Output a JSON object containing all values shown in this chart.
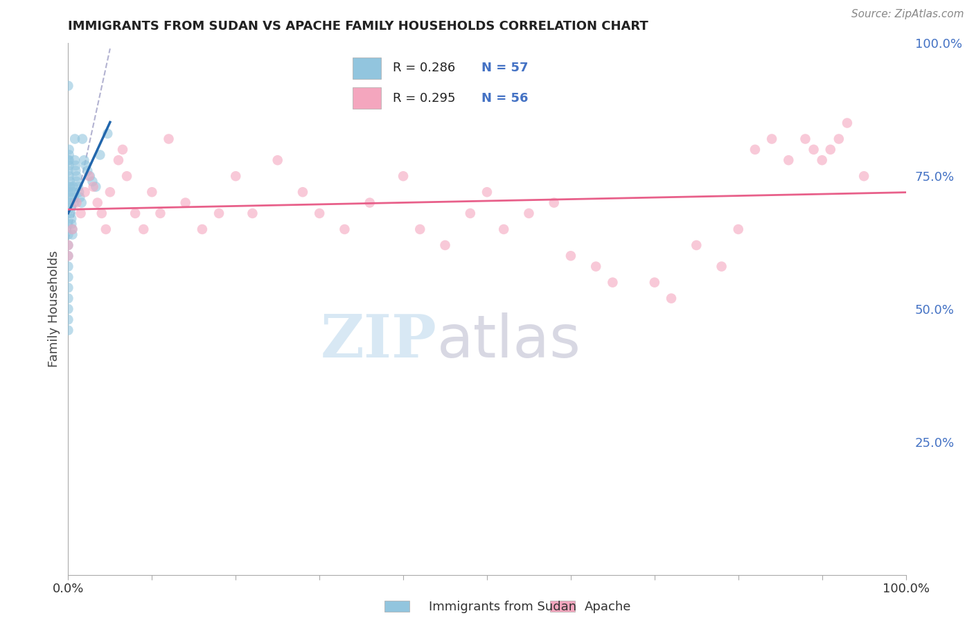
{
  "title": "IMMIGRANTS FROM SUDAN VS APACHE FAMILY HOUSEHOLDS CORRELATION CHART",
  "source_text": "Source: ZipAtlas.com",
  "ylabel": "Family Households",
  "legend_r1": "R = 0.286",
  "legend_n1": "N = 57",
  "legend_r2": "R = 0.295",
  "legend_n2": "N = 56",
  "color_blue": "#92c5de",
  "color_pink": "#f4a6be",
  "color_blue_line": "#2166ac",
  "color_pink_line": "#e8608a",
  "color_ref_line": "#aaaacc",
  "background_color": "#ffffff",
  "grid_color": "#dddddd",
  "title_color": "#222222",
  "source_color": "#888888",
  "axis_label_color": "#444444",
  "right_tick_color": "#4472c4",
  "bottom_label1": "Immigrants from Sudan",
  "bottom_label2": "Apache",
  "blue_x": [
    0.0,
    0.0,
    0.0,
    0.0,
    0.0,
    0.0,
    0.0,
    0.0,
    0.0,
    0.0,
    0.0,
    0.0,
    0.0,
    0.0,
    0.0,
    0.0,
    0.0,
    0.0,
    0.001,
    0.001,
    0.001,
    0.001,
    0.001,
    0.002,
    0.002,
    0.002,
    0.002,
    0.003,
    0.003,
    0.003,
    0.004,
    0.004,
    0.005,
    0.005,
    0.006,
    0.006,
    0.007,
    0.007,
    0.008,
    0.008,
    0.009,
    0.009,
    0.01,
    0.01,
    0.012,
    0.013,
    0.014,
    0.016,
    0.017,
    0.019,
    0.021,
    0.023,
    0.026,
    0.029,
    0.033,
    0.038,
    0.047
  ],
  "blue_y": [
    0.92,
    0.78,
    0.76,
    0.73,
    0.72,
    0.7,
    0.68,
    0.66,
    0.64,
    0.62,
    0.6,
    0.58,
    0.56,
    0.54,
    0.52,
    0.5,
    0.48,
    0.46,
    0.8,
    0.79,
    0.78,
    0.77,
    0.75,
    0.74,
    0.73,
    0.72,
    0.71,
    0.7,
    0.69,
    0.68,
    0.67,
    0.66,
    0.65,
    0.64,
    0.73,
    0.72,
    0.71,
    0.7,
    0.82,
    0.78,
    0.77,
    0.76,
    0.75,
    0.74,
    0.73,
    0.72,
    0.71,
    0.7,
    0.82,
    0.78,
    0.77,
    0.76,
    0.75,
    0.74,
    0.73,
    0.79,
    0.83
  ],
  "pink_x": [
    0.0,
    0.0,
    0.005,
    0.01,
    0.015,
    0.02,
    0.025,
    0.03,
    0.035,
    0.04,
    0.045,
    0.05,
    0.06,
    0.065,
    0.07,
    0.08,
    0.09,
    0.1,
    0.11,
    0.12,
    0.14,
    0.16,
    0.18,
    0.2,
    0.22,
    0.25,
    0.28,
    0.3,
    0.33,
    0.36,
    0.4,
    0.42,
    0.45,
    0.48,
    0.5,
    0.52,
    0.55,
    0.58,
    0.6,
    0.63,
    0.65,
    0.7,
    0.72,
    0.75,
    0.78,
    0.8,
    0.82,
    0.84,
    0.86,
    0.88,
    0.89,
    0.9,
    0.91,
    0.92,
    0.93,
    0.95
  ],
  "pink_y": [
    0.62,
    0.6,
    0.65,
    0.7,
    0.68,
    0.72,
    0.75,
    0.73,
    0.7,
    0.68,
    0.65,
    0.72,
    0.78,
    0.8,
    0.75,
    0.68,
    0.65,
    0.72,
    0.68,
    0.82,
    0.7,
    0.65,
    0.68,
    0.75,
    0.68,
    0.78,
    0.72,
    0.68,
    0.65,
    0.7,
    0.75,
    0.65,
    0.62,
    0.68,
    0.72,
    0.65,
    0.68,
    0.7,
    0.6,
    0.58,
    0.55,
    0.55,
    0.52,
    0.62,
    0.58,
    0.65,
    0.8,
    0.82,
    0.78,
    0.82,
    0.8,
    0.78,
    0.8,
    0.82,
    0.85,
    0.75
  ],
  "watermark_zip_color": "#c8dff0",
  "watermark_atlas_color": "#c8c8d8"
}
